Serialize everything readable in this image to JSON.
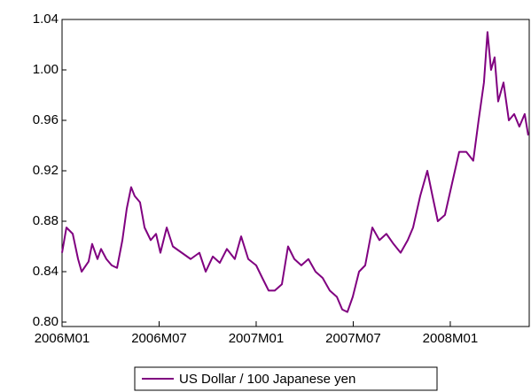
{
  "chart_data": {
    "type": "line",
    "x": [
      0,
      0.27,
      0.66,
      0.99,
      1.21,
      1.64,
      1.86,
      2.19,
      2.41,
      2.74,
      3.07,
      3.4,
      3.73,
      4.0,
      4.27,
      4.49,
      4.82,
      5.1,
      5.48,
      5.81,
      6.08,
      6.47,
      6.85,
      7.4,
      7.95,
      8.49,
      8.88,
      9.32,
      9.75,
      10.19,
      10.68,
      11.07,
      11.51,
      12.0,
      12.38,
      12.77,
      13.15,
      13.59,
      13.97,
      14.36,
      14.79,
      15.23,
      15.67,
      16.11,
      16.55,
      16.99,
      17.32,
      17.64,
      17.97,
      18.36,
      18.74,
      19.18,
      19.62,
      20.05,
      20.49,
      20.93,
      21.37,
      21.7,
      22.14,
      22.58,
      22.9,
      23.23,
      23.67,
      24.11,
      24.55,
      24.99,
      25.42,
      25.75,
      26.08,
      26.3,
      26.52,
      26.74,
      26.96,
      27.29,
      27.62,
      27.95,
      28.27,
      28.6,
      28.82
    ],
    "series": [
      {
        "name": "US Dollar / 100 Japanese yen",
        "color": "#800080",
        "values": [
          0.855,
          0.875,
          0.87,
          0.85,
          0.84,
          0.848,
          0.862,
          0.85,
          0.858,
          0.85,
          0.845,
          0.843,
          0.865,
          0.89,
          0.907,
          0.9,
          0.895,
          0.875,
          0.865,
          0.87,
          0.855,
          0.875,
          0.86,
          0.855,
          0.85,
          0.855,
          0.84,
          0.852,
          0.847,
          0.858,
          0.85,
          0.868,
          0.85,
          0.845,
          0.835,
          0.825,
          0.825,
          0.83,
          0.86,
          0.85,
          0.845,
          0.85,
          0.84,
          0.835,
          0.825,
          0.82,
          0.81,
          0.808,
          0.82,
          0.84,
          0.845,
          0.875,
          0.865,
          0.87,
          0.862,
          0.855,
          0.865,
          0.875,
          0.9,
          0.92,
          0.9,
          0.88,
          0.885,
          0.91,
          0.935,
          0.935,
          0.928,
          0.96,
          0.99,
          1.03,
          1.0,
          1.01,
          0.975,
          0.99,
          0.96,
          0.965,
          0.955,
          0.965,
          0.948
        ]
      }
    ],
    "xlim": [
      0,
      28.88
    ],
    "xticks": [
      {
        "value": 0,
        "label": "2006M01"
      },
      {
        "value": 6,
        "label": "2006M07"
      },
      {
        "value": 12,
        "label": "2007M01"
      },
      {
        "value": 18,
        "label": "2007M07"
      },
      {
        "value": 24,
        "label": "2008M01"
      }
    ],
    "ylim": [
      0.8,
      1.04
    ],
    "yticks": [
      {
        "value": 0.8,
        "label": "0.80"
      },
      0.84,
      0.88,
      0.92,
      0.96,
      {
        "value": 1.0,
        "label": "1.00"
      },
      1.04
    ],
    "grid": false,
    "legend": "bottom"
  }
}
